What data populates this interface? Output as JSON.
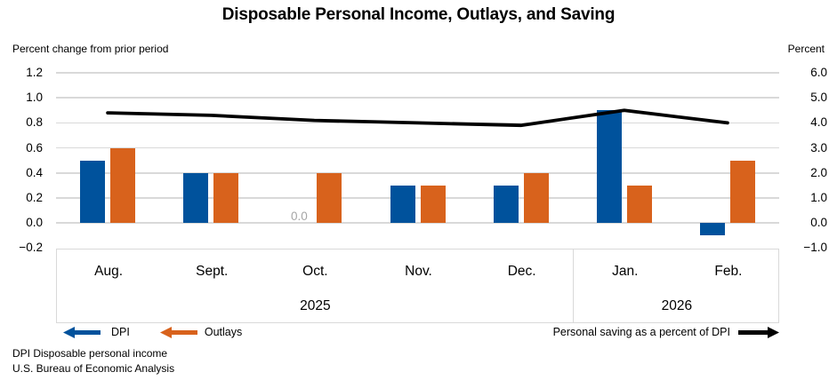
{
  "title": "Disposable Personal Income, Outlays, and Saving",
  "left_axis": {
    "caption": "Percent change from prior period",
    "min": -0.2,
    "max": 1.2,
    "ticks": [
      {
        "label": "1.2",
        "value": 1.2
      },
      {
        "label": "1.0",
        "value": 1.0
      },
      {
        "label": "0.8",
        "value": 0.8
      },
      {
        "label": "0.6",
        "value": 0.6
      },
      {
        "label": "0.4",
        "value": 0.4
      },
      {
        "label": "0.2",
        "value": 0.2
      },
      {
        "label": "0.0",
        "value": 0.0
      },
      {
        "label": "−0.2",
        "value": -0.2
      }
    ]
  },
  "right_axis": {
    "caption": "Percent",
    "min": -1.0,
    "max": 6.0,
    "ticks": [
      {
        "label": "6.0",
        "value": 6.0
      },
      {
        "label": "5.0",
        "value": 5.0
      },
      {
        "label": "4.0",
        "value": 4.0
      },
      {
        "label": "3.0",
        "value": 3.0
      },
      {
        "label": "2.0",
        "value": 2.0
      },
      {
        "label": "1.0",
        "value": 1.0
      },
      {
        "label": "0.0",
        "value": 0.0
      },
      {
        "label": "−1.0",
        "value": -1.0
      }
    ]
  },
  "chart_data": {
    "type": "bar+line",
    "categories": [
      "Aug.",
      "Sept.",
      "Oct.",
      "Nov.",
      "Dec.",
      "Jan.",
      "Feb."
    ],
    "year_groups": [
      {
        "label": "2025",
        "months": 5
      },
      {
        "label": "2026",
        "months": 2
      }
    ],
    "series": [
      {
        "name": "DPI",
        "type": "bar",
        "axis": "left",
        "color": "#00529C",
        "values": [
          0.5,
          0.4,
          0.0,
          0.3,
          0.3,
          0.9,
          -0.1
        ]
      },
      {
        "name": "Outlays",
        "type": "bar",
        "axis": "left",
        "color": "#D8621C",
        "values": [
          0.6,
          0.4,
          0.4,
          0.3,
          0.4,
          0.3,
          0.5
        ]
      },
      {
        "name": "Personal saving as a percent of DPI",
        "type": "line",
        "axis": "right",
        "color": "#000000",
        "values": [
          4.4,
          4.3,
          4.1,
          4.0,
          3.9,
          4.5,
          4.0
        ]
      }
    ],
    "zero_display": "0.0",
    "grid_color": "#D9D9D9",
    "zero_label_color": "#A6A6A6",
    "legend_position": "bottom"
  },
  "footnotes": [
    "DPI Disposable personal income",
    "U.S. Bureau of Economic Analysis"
  ]
}
